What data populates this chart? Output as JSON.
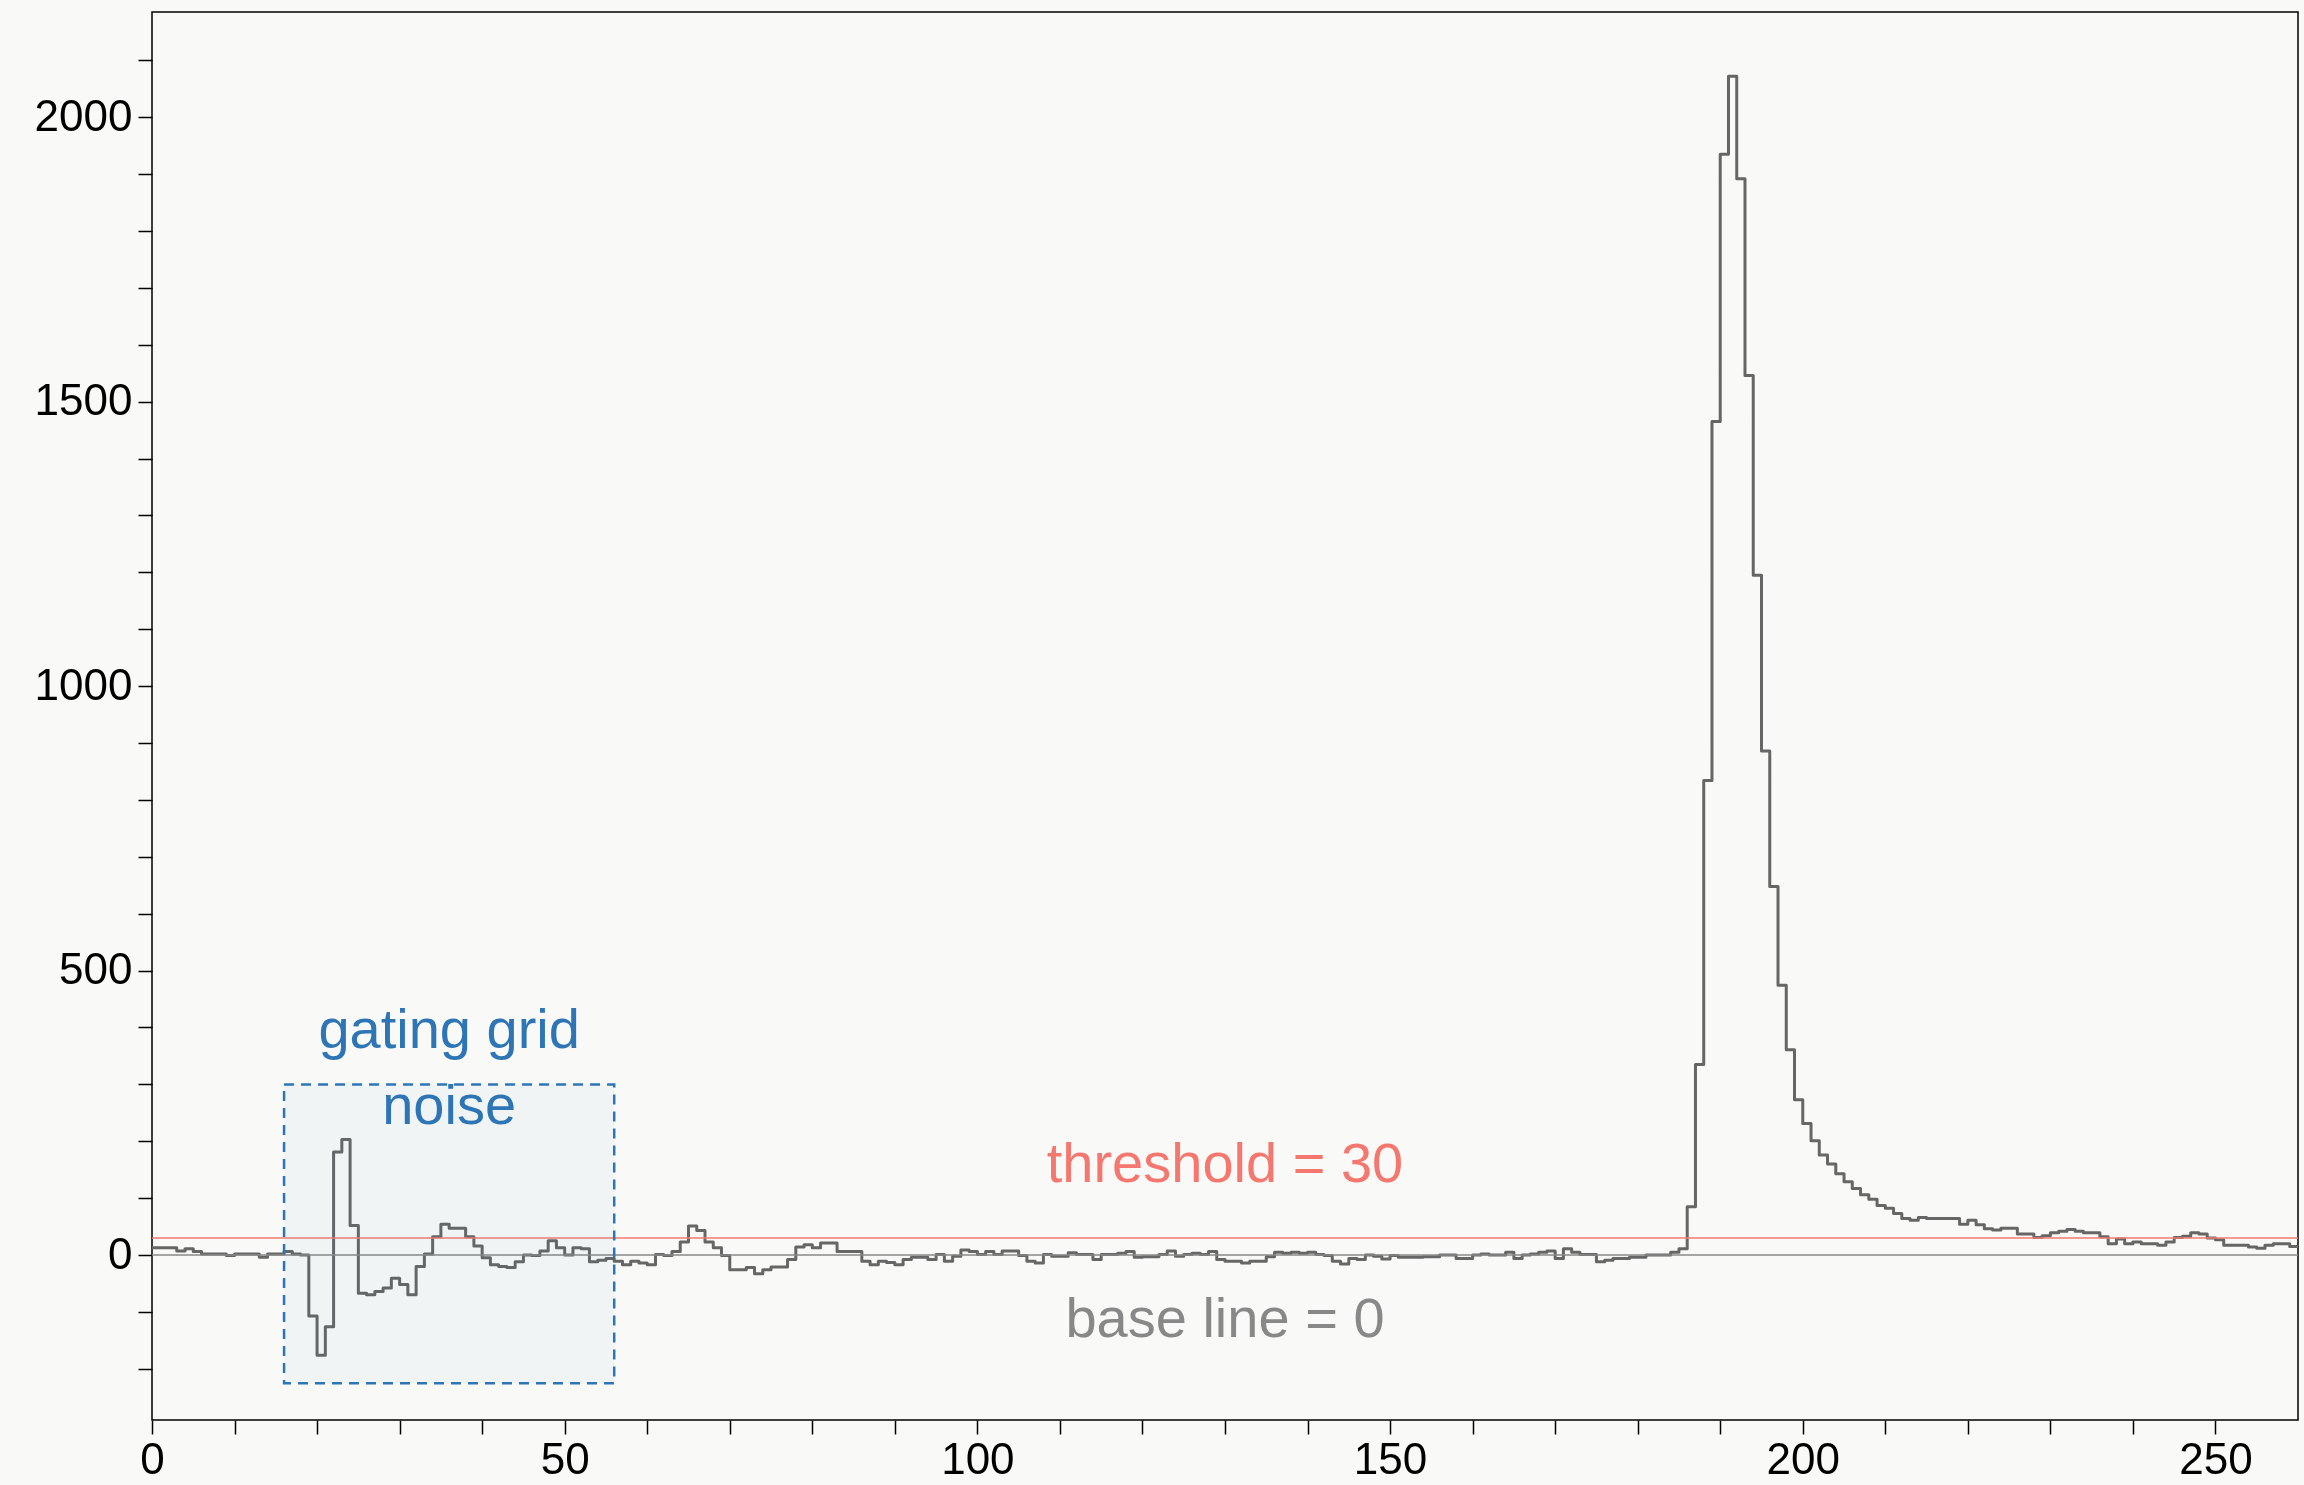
{
  "chart_data": {
    "type": "histogram",
    "color": "#666666",
    "bins": [
      0,
      1,
      2,
      3,
      4,
      5,
      6,
      7,
      8,
      9,
      10,
      11,
      12,
      13,
      14,
      15,
      16,
      17,
      18,
      19,
      20,
      21,
      22,
      23,
      24,
      25,
      26,
      27,
      28,
      29,
      30,
      31,
      32,
      33,
      34,
      35,
      36,
      37,
      38,
      39,
      40,
      41,
      42,
      43,
      44,
      45,
      46,
      47,
      48,
      49,
      50,
      51,
      52,
      53,
      54,
      55,
      56,
      57,
      58,
      59,
      60,
      61,
      62,
      63,
      64,
      65,
      66,
      67,
      68,
      69,
      70,
      71,
      72,
      73,
      74,
      75,
      76,
      77,
      78,
      79,
      80,
      81,
      82,
      83,
      84,
      85,
      86,
      87,
      88,
      89,
      90,
      91,
      92,
      93,
      94,
      95,
      96,
      97,
      98,
      99,
      100,
      101,
      102,
      103,
      104,
      105,
      106,
      107,
      108,
      109,
      110,
      111,
      112,
      113,
      114,
      115,
      116,
      117,
      118,
      119,
      120,
      121,
      122,
      123,
      124,
      125,
      126,
      127,
      128,
      129,
      130,
      131,
      132,
      133,
      134,
      135,
      136,
      137,
      138,
      139,
      140,
      141,
      142,
      143,
      144,
      145,
      146,
      147,
      148,
      149,
      150,
      151,
      152,
      153,
      154,
      155,
      156,
      157,
      158,
      159,
      160,
      161,
      162,
      163,
      164,
      165,
      166,
      167,
      168,
      169,
      170,
      171,
      172,
      173,
      174,
      175,
      176,
      177,
      178,
      179,
      180,
      181,
      182,
      183,
      184,
      185,
      186,
      187,
      188,
      189,
      190,
      191,
      192,
      193,
      194,
      195,
      196,
      197,
      198,
      199,
      200,
      201,
      202,
      203,
      204,
      205,
      206,
      207,
      208,
      209,
      210,
      211,
      212,
      213,
      214,
      215,
      216,
      217,
      218,
      219,
      220,
      221,
      222,
      223,
      224,
      225,
      226,
      227,
      228,
      229,
      230,
      231,
      232,
      233,
      234,
      235,
      236,
      237,
      238,
      239,
      240,
      241,
      242,
      243,
      244,
      245,
      246,
      247,
      248,
      249,
      250,
      251,
      252,
      253,
      254,
      255,
      256,
      257,
      258,
      259,
      260
    ],
    "values": [
      13,
      13,
      13,
      7,
      11,
      6,
      2,
      2,
      2,
      -1,
      2,
      2,
      2,
      -4,
      2,
      2,
      6,
      2,
      0,
      -107,
      -176,
      -126,
      181,
      203,
      52,
      -67,
      -70,
      -64,
      -58,
      -41,
      -52,
      -70,
      -20,
      2,
      32,
      54,
      47,
      47,
      32,
      16,
      -5,
      -17,
      -20,
      -22,
      -12,
      0,
      -1,
      7,
      25,
      13,
      0,
      13,
      11,
      -12,
      -9,
      -6,
      -11,
      -17,
      -11,
      -14,
      -17,
      1,
      -1,
      6,
      23,
      51,
      43,
      23,
      13,
      -1,
      -26,
      -26,
      -22,
      -33,
      -26,
      -21,
      -21,
      -8,
      14,
      18,
      13,
      21,
      21,
      6,
      6,
      6,
      -11,
      -17,
      -11,
      -13,
      -17,
      -8,
      -4,
      -4,
      -8,
      1,
      -11,
      -2,
      9,
      6,
      1,
      6,
      1,
      7,
      7,
      -1,
      -11,
      -14,
      1,
      -2,
      -2,
      4,
      1,
      1,
      -8,
      1,
      1,
      3,
      6,
      -4,
      -3,
      -3,
      1,
      7,
      -2,
      1,
      3,
      1,
      6,
      -8,
      -11,
      -11,
      -14,
      -11,
      -11,
      -3,
      5,
      3,
      5,
      3,
      5,
      1,
      -1,
      -11,
      -16,
      -6,
      -8,
      0,
      -2,
      -7,
      -1,
      -4,
      -4,
      -4,
      -3,
      -3,
      0,
      0,
      -6,
      -6,
      0,
      2,
      0,
      0,
      5,
      -6,
      0,
      2,
      5,
      7,
      -6,
      11,
      5,
      1,
      1,
      -12,
      -9,
      -6,
      -6,
      -4,
      -4,
      0,
      0,
      0,
      5,
      11,
      85,
      335,
      834,
      1465,
      1935,
      2072,
      1892,
      1546,
      1195,
      886,
      648,
      474,
      361,
      273,
      231,
      201,
      176,
      160,
      143,
      129,
      117,
      106,
      98,
      87,
      82,
      73,
      64,
      61,
      66,
      64,
      64,
      64,
      64,
      54,
      61,
      53,
      46,
      44,
      47,
      47,
      37,
      37,
      31,
      34,
      39,
      42,
      45,
      42,
      39,
      39,
      32,
      20,
      28,
      20,
      23,
      20,
      20,
      17,
      23,
      31,
      33,
      39,
      37,
      30,
      27,
      17,
      17,
      17,
      14,
      12,
      17,
      20,
      20,
      15
    ],
    "xlim": [
      0,
      260
    ],
    "xticks": [
      0,
      {
        "value": 10,
        "label": null
      },
      {
        "value": 20,
        "label": null
      },
      {
        "value": 30,
        "label": null
      },
      {
        "value": 40,
        "label": null
      },
      50,
      {
        "value": 60,
        "label": null
      },
      {
        "value": 70,
        "label": null
      },
      {
        "value": 80,
        "label": null
      },
      {
        "value": 90,
        "label": null
      },
      100,
      {
        "value": 110,
        "label": null
      },
      {
        "value": 120,
        "label": null
      },
      {
        "value": 130,
        "label": null
      },
      {
        "value": 140,
        "label": null
      },
      150,
      {
        "value": 160,
        "label": null
      },
      {
        "value": 170,
        "label": null
      },
      {
        "value": 180,
        "label": null
      },
      {
        "value": 190,
        "label": null
      },
      200,
      {
        "value": 210,
        "label": null
      },
      {
        "value": 220,
        "label": null
      },
      {
        "value": 230,
        "label": null
      },
      {
        "value": 240,
        "label": null
      },
      250
    ],
    "ylim": [
      -290,
      2185
    ],
    "yticks": [
      {
        "value": -200,
        "label": null
      },
      {
        "value": -100,
        "label": null
      },
      0,
      {
        "value": 100,
        "label": null
      },
      {
        "value": 200,
        "label": null
      },
      {
        "value": 300,
        "label": null
      },
      {
        "value": 400,
        "label": null
      },
      500,
      {
        "value": 600,
        "label": null
      },
      {
        "value": 700,
        "label": null
      },
      {
        "value": 800,
        "label": null
      },
      {
        "value": 900,
        "label": null
      },
      1000,
      {
        "value": 1100,
        "label": null
      },
      {
        "value": 1200,
        "label": null
      },
      {
        "value": 1300,
        "label": null
      },
      {
        "value": 1400,
        "label": null
      },
      1500,
      {
        "value": 1600,
        "label": null
      },
      {
        "value": 1700,
        "label": null
      },
      {
        "value": 1800,
        "label": null
      },
      {
        "value": 1900,
        "label": null
      },
      2000,
      {
        "value": 2100,
        "label": null
      }
    ],
    "ref_lines": [
      {
        "axis": "y",
        "value": 30,
        "label": "threshold = 30",
        "color": "#f4786f"
      },
      {
        "axis": "y",
        "value": 0,
        "label": "base line = 0",
        "color": "#888888"
      }
    ],
    "bands": [
      {
        "axis": "x",
        "from": 16,
        "to": 56,
        "label": "gating grid noise",
        "color": "#2e75b6"
      }
    ]
  }
}
